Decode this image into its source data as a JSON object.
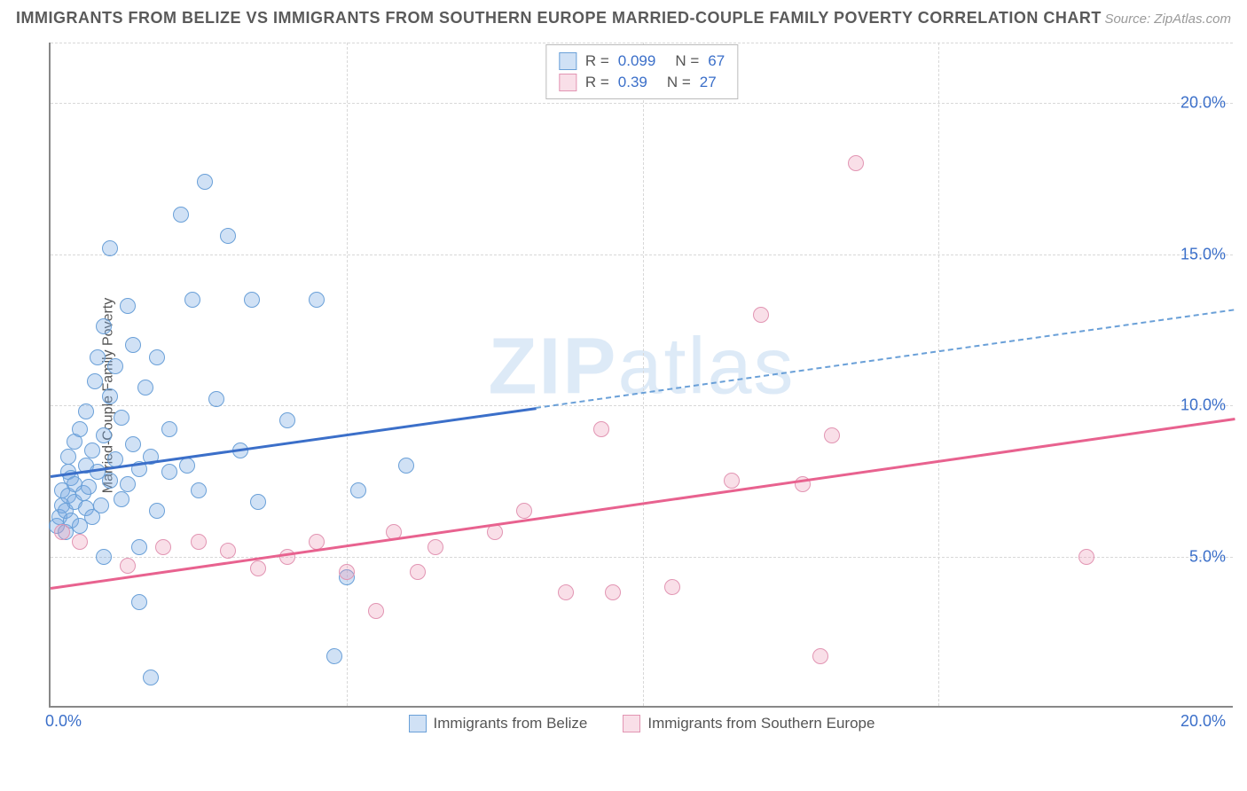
{
  "header": {
    "title": "IMMIGRANTS FROM BELIZE VS IMMIGRANTS FROM SOUTHERN EUROPE MARRIED-COUPLE FAMILY POVERTY CORRELATION CHART",
    "source": "Source: ZipAtlas.com"
  },
  "chart": {
    "type": "scatter",
    "ylabel": "Married-Couple Family Poverty",
    "xlim": [
      0,
      20
    ],
    "ylim": [
      0,
      22
    ],
    "yticks": [
      {
        "v": 5,
        "label": "5.0%"
      },
      {
        "v": 10,
        "label": "10.0%"
      },
      {
        "v": 15,
        "label": "15.0%"
      },
      {
        "v": 20,
        "label": "20.0%"
      }
    ],
    "xticks_minor": [
      5,
      10,
      15
    ],
    "xtick_left": "0.0%",
    "xtick_right": "20.0%",
    "background_color": "#ffffff",
    "grid_color": "#d8d8d8",
    "axis_color": "#888888",
    "tick_label_color": "#3b6fc9",
    "series": [
      {
        "name": "Immigrants from Belize",
        "label": "Immigrants from Belize",
        "point_fill": "rgba(120,170,225,0.35)",
        "point_stroke": "#6aa0d8",
        "line_color": "#3b6fc9",
        "dash_color": "#6aa0d8",
        "r": 0.099,
        "n": 67,
        "trend": {
          "x1": 0,
          "y1": 7.7,
          "x2_solid": 8.2,
          "x2": 20,
          "y2": 13.2
        },
        "points": [
          [
            0.1,
            6.0
          ],
          [
            0.15,
            6.3
          ],
          [
            0.2,
            6.7
          ],
          [
            0.2,
            7.2
          ],
          [
            0.25,
            5.8
          ],
          [
            0.25,
            6.5
          ],
          [
            0.3,
            7.0
          ],
          [
            0.3,
            7.8
          ],
          [
            0.3,
            8.3
          ],
          [
            0.35,
            6.2
          ],
          [
            0.35,
            7.6
          ],
          [
            0.4,
            6.8
          ],
          [
            0.4,
            8.8
          ],
          [
            0.4,
            7.4
          ],
          [
            0.5,
            6.0
          ],
          [
            0.5,
            9.2
          ],
          [
            0.55,
            7.1
          ],
          [
            0.6,
            6.6
          ],
          [
            0.6,
            8.0
          ],
          [
            0.6,
            9.8
          ],
          [
            0.65,
            7.3
          ],
          [
            0.7,
            6.3
          ],
          [
            0.7,
            8.5
          ],
          [
            0.75,
            10.8
          ],
          [
            0.8,
            7.8
          ],
          [
            0.8,
            11.6
          ],
          [
            0.85,
            6.7
          ],
          [
            0.9,
            9.0
          ],
          [
            0.9,
            12.6
          ],
          [
            1.0,
            7.5
          ],
          [
            1.0,
            10.3
          ],
          [
            1.0,
            15.2
          ],
          [
            1.1,
            8.2
          ],
          [
            1.1,
            11.3
          ],
          [
            1.2,
            6.9
          ],
          [
            1.2,
            9.6
          ],
          [
            1.3,
            7.4
          ],
          [
            1.3,
            13.3
          ],
          [
            1.4,
            8.7
          ],
          [
            1.4,
            12.0
          ],
          [
            1.5,
            7.9
          ],
          [
            1.5,
            3.5
          ],
          [
            1.6,
            10.6
          ],
          [
            1.7,
            8.3
          ],
          [
            1.7,
            1.0
          ],
          [
            1.8,
            6.5
          ],
          [
            1.8,
            11.6
          ],
          [
            2.0,
            7.8
          ],
          [
            2.0,
            9.2
          ],
          [
            2.2,
            16.3
          ],
          [
            2.3,
            8.0
          ],
          [
            2.4,
            13.5
          ],
          [
            2.5,
            7.2
          ],
          [
            2.6,
            17.4
          ],
          [
            2.8,
            10.2
          ],
          [
            3.0,
            15.6
          ],
          [
            3.2,
            8.5
          ],
          [
            3.4,
            13.5
          ],
          [
            3.5,
            6.8
          ],
          [
            4.0,
            9.5
          ],
          [
            4.5,
            13.5
          ],
          [
            4.8,
            1.7
          ],
          [
            5.0,
            4.3
          ],
          [
            5.2,
            7.2
          ],
          [
            6.0,
            8.0
          ],
          [
            1.5,
            5.3
          ],
          [
            0.9,
            5.0
          ]
        ]
      },
      {
        "name": "Immigrants from Southern Europe",
        "label": "Immigrants from Southern Europe",
        "point_fill": "rgba(235,150,180,0.3)",
        "point_stroke": "#e295b3",
        "line_color": "#e8628f",
        "r": 0.39,
        "n": 27,
        "trend": {
          "x1": 0,
          "y1": 4.0,
          "x2_solid": 20,
          "x2": 20,
          "y2": 9.6
        },
        "points": [
          [
            0.2,
            5.8
          ],
          [
            0.5,
            5.5
          ],
          [
            1.3,
            4.7
          ],
          [
            1.9,
            5.3
          ],
          [
            2.5,
            5.5
          ],
          [
            3.0,
            5.2
          ],
          [
            3.5,
            4.6
          ],
          [
            4.0,
            5.0
          ],
          [
            4.5,
            5.5
          ],
          [
            5.0,
            4.5
          ],
          [
            5.5,
            3.2
          ],
          [
            5.8,
            5.8
          ],
          [
            6.2,
            4.5
          ],
          [
            6.5,
            5.3
          ],
          [
            7.5,
            5.8
          ],
          [
            8.0,
            6.5
          ],
          [
            8.7,
            3.8
          ],
          [
            9.3,
            9.2
          ],
          [
            9.5,
            3.8
          ],
          [
            10.5,
            4.0
          ],
          [
            11.5,
            7.5
          ],
          [
            12.0,
            13.0
          ],
          [
            12.7,
            7.4
          ],
          [
            13.0,
            1.7
          ],
          [
            13.2,
            9.0
          ],
          [
            13.6,
            18.0
          ],
          [
            17.5,
            5.0
          ]
        ]
      }
    ],
    "legend_top": {
      "r_label": "R =",
      "n_label": "N ="
    },
    "watermark": {
      "text_bold": "ZIP",
      "text_rest": "atlas",
      "color": "rgba(120,170,225,0.25)"
    }
  }
}
